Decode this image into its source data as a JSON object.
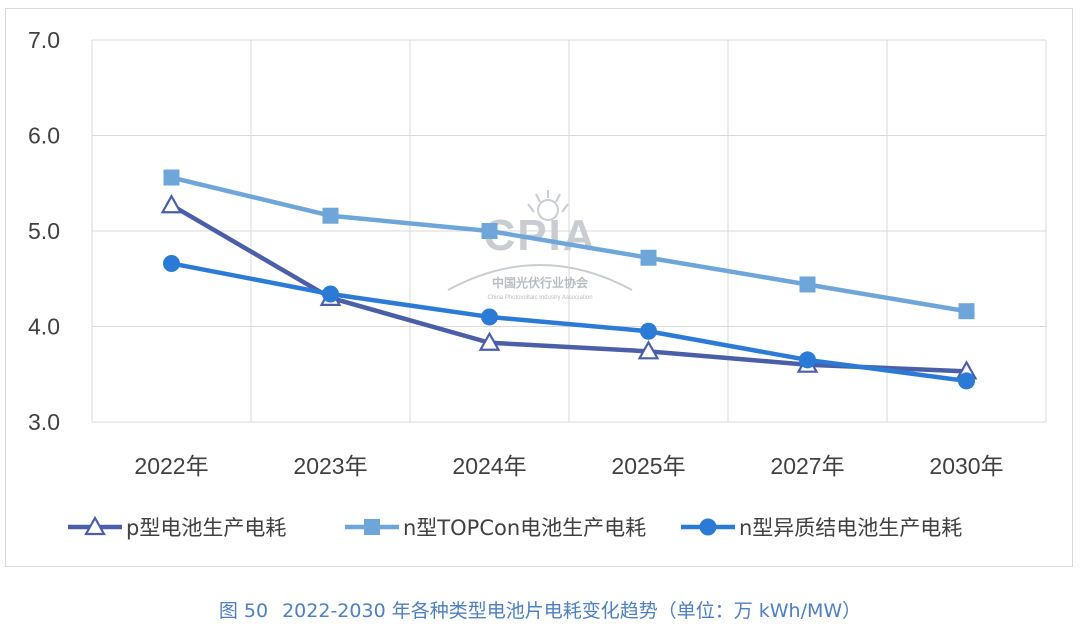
{
  "chart_data": {
    "type": "line",
    "title": "",
    "xlabel": "",
    "ylabel": "",
    "ylim": [
      3.0,
      7.0
    ],
    "yticks": [
      "7.0",
      "6.0",
      "5.0",
      "4.0",
      "3.0"
    ],
    "categories": [
      "2022年",
      "2023年",
      "2024年",
      "2025年",
      "2027年",
      "2030年"
    ],
    "grid": true,
    "legend_position": "bottom",
    "series": [
      {
        "name": "p型电池生产电耗",
        "marker": "triangle",
        "color": "#4a5fa8",
        "values": [
          5.27,
          4.3,
          3.83,
          3.74,
          3.6,
          3.53
        ]
      },
      {
        "name": "n型TOPCon电池生产电耗",
        "marker": "square",
        "color": "#6fa6d9",
        "values": [
          5.56,
          5.16,
          5.0,
          4.72,
          4.44,
          4.16
        ]
      },
      {
        "name": "n型异质结电池生产电耗",
        "marker": "circle",
        "color": "#2b7ad6",
        "values": [
          4.66,
          4.34,
          4.1,
          3.95,
          3.65,
          3.43
        ]
      }
    ]
  },
  "watermark": {
    "text": "CPIA",
    "cn": "中国光伏行业协会",
    "en": "China Photovoltaic Industry Association"
  },
  "caption": {
    "figure": "图 50",
    "text": "2022-2030 年各种类型电池片电耗变化趋势（单位：万 kWh/MW）"
  }
}
